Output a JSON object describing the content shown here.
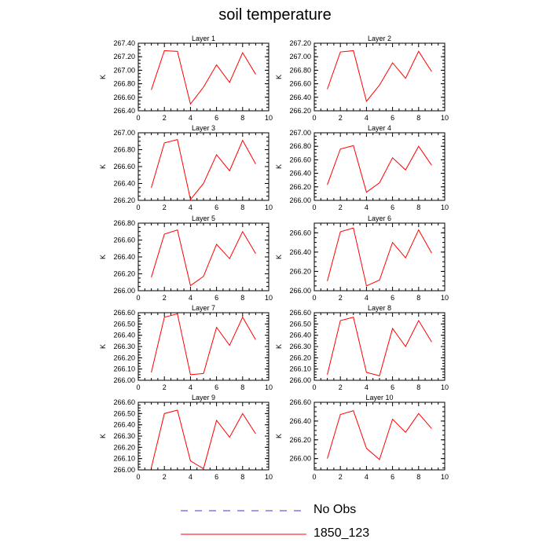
{
  "title": "soil temperature",
  "legend": [
    {
      "label": "No Obs",
      "color": "#3a3ad8",
      "style": "dashed"
    },
    {
      "label": "1850_123",
      "color": "#ff0000",
      "style": "solid"
    }
  ],
  "chart_data": [
    {
      "type": "line",
      "title": "Layer 1",
      "ylabel": "K",
      "xlim": [
        0,
        10
      ],
      "x_ticks": [
        0,
        2,
        4,
        6,
        8,
        10
      ],
      "ylim": [
        266.4,
        267.4
      ],
      "y_ticks": [
        "266.40",
        "266.60",
        "266.80",
        "267.00",
        "267.20",
        "267.40"
      ],
      "x": [
        1,
        2,
        3,
        4,
        5,
        6,
        7,
        8,
        9
      ],
      "series": [
        {
          "name": "1850_123",
          "values": [
            266.71,
            267.29,
            267.28,
            266.5,
            266.75,
            267.08,
            266.82,
            267.26,
            266.94
          ]
        }
      ]
    },
    {
      "type": "line",
      "title": "Layer 2",
      "ylabel": "K",
      "xlim": [
        0,
        10
      ],
      "x_ticks": [
        0,
        2,
        4,
        6,
        8,
        10
      ],
      "ylim": [
        266.2,
        267.2
      ],
      "y_ticks": [
        "266.20",
        "266.40",
        "266.60",
        "266.80",
        "267.00",
        "267.20"
      ],
      "x": [
        1,
        2,
        3,
        4,
        5,
        6,
        7,
        8,
        9
      ],
      "series": [
        {
          "name": "1850_123",
          "values": [
            266.52,
            267.07,
            267.09,
            266.34,
            266.58,
            266.91,
            266.68,
            267.08,
            266.78
          ]
        }
      ]
    },
    {
      "type": "line",
      "title": "Layer 3",
      "ylabel": "K",
      "xlim": [
        0,
        10
      ],
      "x_ticks": [
        0,
        2,
        4,
        6,
        8,
        10
      ],
      "ylim": [
        266.2,
        267.0
      ],
      "y_ticks": [
        "266.20",
        "266.40",
        "266.60",
        "266.80",
        "267.00"
      ],
      "x": [
        1,
        2,
        3,
        4,
        5,
        6,
        7,
        8,
        9
      ],
      "series": [
        {
          "name": "1850_123",
          "values": [
            266.35,
            266.88,
            266.92,
            266.21,
            266.4,
            266.74,
            266.55,
            266.91,
            266.63
          ]
        }
      ]
    },
    {
      "type": "line",
      "title": "Layer 4",
      "ylabel": "K",
      "xlim": [
        0,
        10
      ],
      "x_ticks": [
        0,
        2,
        4,
        6,
        8,
        10
      ],
      "ylim": [
        266.0,
        267.0
      ],
      "y_ticks": [
        "266.00",
        "266.20",
        "266.40",
        "266.60",
        "266.80",
        "267.00"
      ],
      "x": [
        1,
        2,
        3,
        4,
        5,
        6,
        7,
        8,
        9
      ],
      "series": [
        {
          "name": "1850_123",
          "values": [
            266.23,
            266.76,
            266.81,
            266.12,
            266.26,
            266.63,
            266.45,
            266.8,
            266.52
          ]
        }
      ]
    },
    {
      "type": "line",
      "title": "Layer 5",
      "ylabel": "K",
      "xlim": [
        0,
        10
      ],
      "x_ticks": [
        0,
        2,
        4,
        6,
        8,
        10
      ],
      "ylim": [
        266.0,
        266.8
      ],
      "y_ticks": [
        "266.00",
        "266.20",
        "266.40",
        "266.60",
        "266.80"
      ],
      "x": [
        1,
        2,
        3,
        4,
        5,
        6,
        7,
        8,
        9
      ],
      "series": [
        {
          "name": "1850_123",
          "values": [
            266.16,
            266.67,
            266.72,
            266.06,
            266.17,
            266.55,
            266.38,
            266.7,
            266.44
          ]
        }
      ]
    },
    {
      "type": "line",
      "title": "Layer 6",
      "ylabel": "K",
      "xlim": [
        0,
        10
      ],
      "x_ticks": [
        0,
        2,
        4,
        6,
        8,
        10
      ],
      "ylim": [
        266.0,
        266.7
      ],
      "y_ticks": [
        "266.00",
        "266.20",
        "266.40",
        "266.60"
      ],
      "x": [
        1,
        2,
        3,
        4,
        5,
        6,
        7,
        8,
        9
      ],
      "series": [
        {
          "name": "1850_123",
          "values": [
            266.1,
            266.61,
            266.65,
            266.05,
            266.11,
            266.5,
            266.34,
            266.63,
            266.39
          ]
        }
      ]
    },
    {
      "type": "line",
      "title": "Layer 7",
      "ylabel": "K",
      "xlim": [
        0,
        10
      ],
      "x_ticks": [
        0,
        2,
        4,
        6,
        8,
        10
      ],
      "ylim": [
        266.0,
        266.6
      ],
      "y_ticks": [
        "266.00",
        "266.10",
        "266.20",
        "266.30",
        "266.40",
        "266.50",
        "266.60"
      ],
      "x": [
        1,
        2,
        3,
        4,
        5,
        6,
        7,
        8,
        9
      ],
      "series": [
        {
          "name": "1850_123",
          "values": [
            266.07,
            266.56,
            266.59,
            266.05,
            266.06,
            266.47,
            266.31,
            266.56,
            266.36
          ]
        }
      ]
    },
    {
      "type": "line",
      "title": "Layer 8",
      "ylabel": "K",
      "xlim": [
        0,
        10
      ],
      "x_ticks": [
        0,
        2,
        4,
        6,
        8,
        10
      ],
      "ylim": [
        266.0,
        266.6
      ],
      "y_ticks": [
        "266.00",
        "266.10",
        "266.20",
        "266.30",
        "266.40",
        "266.50",
        "266.60"
      ],
      "x": [
        1,
        2,
        3,
        4,
        5,
        6,
        7,
        8,
        9
      ],
      "series": [
        {
          "name": "1850_123",
          "values": [
            266.05,
            266.53,
            266.56,
            266.07,
            266.04,
            266.46,
            266.3,
            266.53,
            266.34
          ]
        }
      ]
    },
    {
      "type": "line",
      "title": "Layer 9",
      "ylabel": "K",
      "xlim": [
        0,
        10
      ],
      "x_ticks": [
        0,
        2,
        4,
        6,
        8,
        10
      ],
      "ylim": [
        266.0,
        266.6
      ],
      "y_ticks": [
        "266.00",
        "266.10",
        "266.20",
        "266.30",
        "266.40",
        "266.50",
        "266.60"
      ],
      "x": [
        1,
        2,
        3,
        4,
        5,
        6,
        7,
        8,
        9
      ],
      "series": [
        {
          "name": "1850_123",
          "values": [
            266.02,
            266.5,
            266.53,
            266.08,
            266.01,
            266.44,
            266.29,
            266.5,
            266.32
          ]
        }
      ]
    },
    {
      "type": "line",
      "title": "Layer 10",
      "ylabel": "K",
      "xlim": [
        0,
        10
      ],
      "x_ticks": [
        0,
        2,
        4,
        6,
        8,
        10
      ],
      "ylim": [
        265.88,
        266.6
      ],
      "y_ticks": [
        "266.00",
        "266.20",
        "266.40",
        "266.60"
      ],
      "x": [
        1,
        2,
        3,
        4,
        5,
        6,
        7,
        8,
        9
      ],
      "series": [
        {
          "name": "1850_123",
          "values": [
            266.0,
            266.47,
            266.51,
            266.11,
            265.99,
            266.42,
            266.28,
            266.48,
            266.32
          ]
        }
      ]
    }
  ]
}
